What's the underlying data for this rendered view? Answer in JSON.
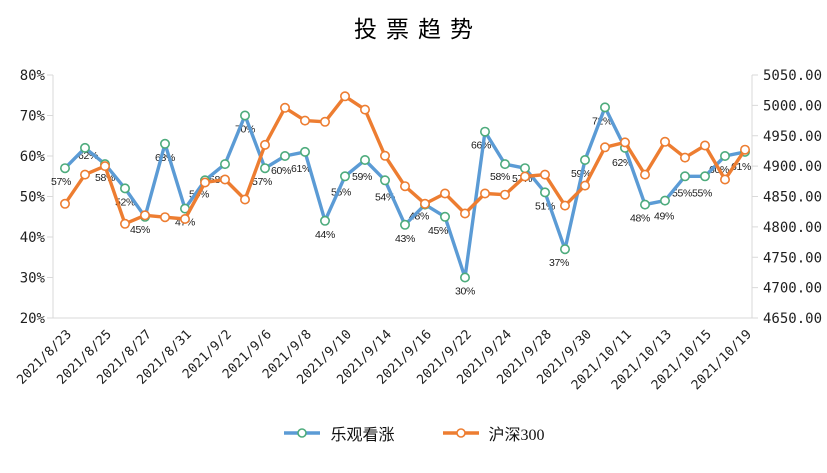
{
  "title": "投票趋势",
  "chart_data": {
    "type": "line",
    "title": "投票趋势",
    "grid": false,
    "legend_position": "bottom",
    "axis_color": "#D9D9D9",
    "text_color": "#1f1f1f",
    "background": "#FFFFFF",
    "x_tick_every_nth_point": 2,
    "num_points": 35,
    "x_tick_labels": [
      "2021/8/23",
      "2021/8/25",
      "2021/8/27",
      "2021/8/31",
      "2021/9/2",
      "2021/9/6",
      "2021/9/8",
      "2021/9/10",
      "2021/9/14",
      "2021/9/16",
      "2021/9/22",
      "2021/9/24",
      "2021/9/28",
      "2021/9/30",
      "2021/10/11",
      "2021/10/13",
      "2021/10/15",
      "2021/10/19"
    ],
    "left_axis": {
      "min": 20,
      "max": 80,
      "tick_step": 10,
      "tick_labels": [
        "20%",
        "30%",
        "40%",
        "50%",
        "60%",
        "70%",
        "80%"
      ]
    },
    "right_axis": {
      "min": 4650,
      "max": 5050,
      "tick_step": 50,
      "tick_labels": [
        "4650.00",
        "4700.00",
        "4750.00",
        "4800.00",
        "4850.00",
        "4900.00",
        "4950.00",
        "5000.00",
        "5050.00"
      ]
    },
    "series": [
      {
        "name": "乐观看涨",
        "axis": "left",
        "unit": "%",
        "color": "#5B9BD5",
        "marker_stroke": "#4DAB7C",
        "show_labels": true,
        "values": [
          57,
          62,
          58,
          52,
          45,
          63,
          47,
          54,
          58,
          70,
          57,
          60,
          61,
          44,
          55,
          59,
          54,
          43,
          48,
          45,
          30,
          66,
          58,
          57,
          51,
          37,
          59,
          72,
          62,
          48,
          49,
          55,
          55,
          60,
          61
        ],
        "labels": [
          "57%",
          "62%",
          "58%",
          "52%",
          "45%",
          "63%",
          "47%",
          "54%",
          "58%",
          "70%",
          "57%",
          "60%",
          "61%",
          "44%",
          "55%",
          "59%",
          "54%",
          "43%",
          "48%",
          "45%",
          "30%",
          "66%",
          "58%",
          "57%",
          "51%",
          "37%",
          "59%",
          "72%",
          "62%",
          "48%",
          "49%",
          "55%",
          "55%",
          "60%",
          "61%"
        ]
      },
      {
        "name": "沪深300",
        "axis": "right",
        "unit": "",
        "color": "#ED7D31",
        "marker_stroke": "#ED7D31",
        "show_labels": false,
        "values": [
          4838,
          4886,
          4900,
          4805,
          4819,
          4816,
          4813,
          4873,
          4878,
          4845,
          4935,
          4996,
          4975,
          4973,
          5015,
          4993,
          4917,
          4867,
          4838,
          4855,
          4822,
          4855,
          4853,
          4883,
          4886,
          4835,
          4868,
          4931,
          4939,
          4886,
          4940,
          4914,
          4934,
          4878,
          4927
        ]
      }
    ]
  }
}
